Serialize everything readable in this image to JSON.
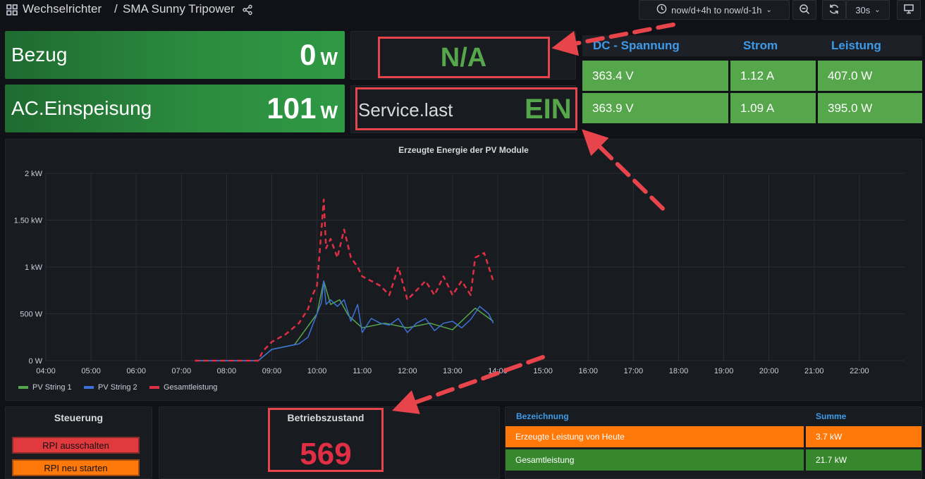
{
  "header": {
    "folder": "Wechselrichter",
    "separator": "/",
    "dashboard": "SMA Sunny Tripower",
    "time_range": "now/d+4h to now/d-1h",
    "refresh_interval": "30s"
  },
  "stats": {
    "bezug": {
      "label": "Bezug",
      "value": "0",
      "unit": "W"
    },
    "einspeisung": {
      "label": "AC.Einspeisung",
      "value": "101",
      "unit": "W"
    },
    "na": {
      "value": "N/A"
    },
    "service": {
      "label": "Service.last",
      "value": "EIN"
    }
  },
  "dc_table": {
    "headers": [
      "DC - Spannung",
      "Strom",
      "Leistung"
    ],
    "rows": [
      [
        "363.4 V",
        "1.12 A",
        "407.0 W"
      ],
      [
        "363.9 V",
        "1.09 A",
        "395.0 W"
      ]
    ]
  },
  "chart_data": {
    "type": "line",
    "title": "Erzeugte Energie der PV Module",
    "y_ticks": [
      "2 kW",
      "1.50 kW",
      "1 kW",
      "500 W",
      "0 W"
    ],
    "x_ticks": [
      "04:00",
      "05:00",
      "06:00",
      "07:00",
      "08:00",
      "09:00",
      "10:00",
      "11:00",
      "12:00",
      "13:00",
      "14:00",
      "15:00",
      "16:00",
      "17:00",
      "18:00",
      "19:00",
      "20:00",
      "21:00",
      "22:00"
    ],
    "ylim": [
      0,
      2000
    ],
    "x_unit": "hour of day",
    "series": [
      {
        "name": "PV String 1",
        "color": "#56a64b",
        "style": "solid",
        "x": [
          7.3,
          8.0,
          8.7,
          9.0,
          9.5,
          10.0,
          10.15,
          10.3,
          10.5,
          10.7,
          11.0,
          11.5,
          12.0,
          12.5,
          13.0,
          13.5,
          13.9
        ],
        "y": [
          0,
          0,
          0,
          120,
          170,
          500,
          850,
          600,
          650,
          480,
          350,
          400,
          350,
          400,
          330,
          560,
          420
        ]
      },
      {
        "name": "PV String 2",
        "color": "#3d71d9",
        "style": "solid",
        "x": [
          7.3,
          8.0,
          8.7,
          8.8,
          9.0,
          9.3,
          9.6,
          9.8,
          10.0,
          10.1,
          10.15,
          10.2,
          10.3,
          10.45,
          10.6,
          10.75,
          10.9,
          11.0,
          11.2,
          11.4,
          11.6,
          11.8,
          12.0,
          12.2,
          12.4,
          12.6,
          12.8,
          13.0,
          13.2,
          13.4,
          13.6,
          13.8,
          13.9
        ],
        "y": [
          0,
          0,
          0,
          40,
          120,
          150,
          180,
          250,
          500,
          620,
          850,
          600,
          650,
          580,
          650,
          420,
          600,
          300,
          450,
          400,
          380,
          450,
          300,
          400,
          450,
          320,
          400,
          420,
          350,
          440,
          580,
          500,
          400
        ]
      },
      {
        "name": "Gesamtleistung",
        "color": "#e02f44",
        "style": "dashed",
        "x": [
          7.3,
          8.0,
          8.7,
          8.8,
          9.0,
          9.3,
          9.6,
          9.8,
          9.9,
          10.0,
          10.05,
          10.1,
          10.15,
          10.2,
          10.3,
          10.45,
          10.6,
          10.75,
          10.9,
          11.0,
          11.2,
          11.4,
          11.6,
          11.8,
          12.0,
          12.2,
          12.4,
          12.6,
          12.8,
          13.0,
          13.2,
          13.4,
          13.5,
          13.7,
          13.9
        ],
        "y": [
          0,
          0,
          0,
          100,
          200,
          280,
          400,
          550,
          700,
          800,
          1100,
          1400,
          1720,
          1200,
          1300,
          1100,
          1400,
          1100,
          1000,
          900,
          850,
          800,
          700,
          1000,
          650,
          750,
          850,
          700,
          900,
          700,
          850,
          700,
          1100,
          1150,
          850
        ]
      }
    ]
  },
  "steuerung": {
    "title": "Steuerung",
    "btn_off": "RPI ausschalten",
    "btn_restart": "RPI neu starten"
  },
  "betrieb": {
    "title": "Betriebszustand",
    "value": "569"
  },
  "summary_table": {
    "headers": [
      "Bezeichnung",
      "Summe"
    ],
    "rows": [
      {
        "label": "Erzeugte Leistung von Heute",
        "value": "3.7 kW",
        "color": "#ff780a"
      },
      {
        "label": "Gesamtleistung",
        "value": "21.7 kW",
        "color": "#37872d"
      }
    ]
  }
}
